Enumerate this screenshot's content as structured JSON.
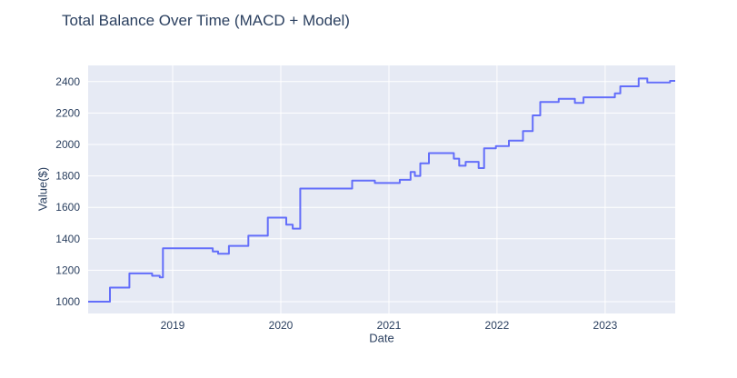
{
  "chart_data": {
    "type": "line",
    "title": "Total Balance Over Time (MACD + Model)",
    "xlabel": "Date",
    "ylabel": "Value($)",
    "line_shape": "step-after",
    "legend": "none",
    "grid": true,
    "x_range": [
      2018.218,
      2023.648
    ],
    "y_range": [
      925,
      2503
    ],
    "x_ticks": [
      {
        "value": 2019,
        "label": "2019"
      },
      {
        "value": 2020,
        "label": "2020"
      },
      {
        "value": 2021,
        "label": "2021"
      },
      {
        "value": 2022,
        "label": "2022"
      },
      {
        "value": 2023,
        "label": "2023"
      }
    ],
    "y_ticks": [
      {
        "value": 1000,
        "label": "1000"
      },
      {
        "value": 1200,
        "label": "1200"
      },
      {
        "value": 1400,
        "label": "1400"
      },
      {
        "value": 1600,
        "label": "1600"
      },
      {
        "value": 1800,
        "label": "1800"
      },
      {
        "value": 2000,
        "label": "2000"
      },
      {
        "value": 2200,
        "label": "2200"
      },
      {
        "value": 2400,
        "label": "2400"
      }
    ],
    "colors": {
      "line": "#636efa",
      "plot_bg": "#e6eaf4",
      "grid": "#ffffff",
      "text": "#2a3f5f",
      "paper_bg": "#ffffff"
    },
    "series": [
      {
        "name": "Total Balance",
        "points": [
          [
            2018.218,
            1000
          ],
          [
            2018.42,
            1090
          ],
          [
            2018.6,
            1180
          ],
          [
            2018.81,
            1165
          ],
          [
            2018.88,
            1155
          ],
          [
            2018.91,
            1340
          ],
          [
            2019.37,
            1320
          ],
          [
            2019.42,
            1305
          ],
          [
            2019.52,
            1355
          ],
          [
            2019.7,
            1420
          ],
          [
            2019.88,
            1535
          ],
          [
            2020.05,
            1490
          ],
          [
            2020.11,
            1465
          ],
          [
            2020.18,
            1720
          ],
          [
            2020.66,
            1770
          ],
          [
            2020.87,
            1755
          ],
          [
            2021.1,
            1775
          ],
          [
            2021.2,
            1825
          ],
          [
            2021.24,
            1800
          ],
          [
            2021.29,
            1880
          ],
          [
            2021.37,
            1945
          ],
          [
            2021.6,
            1910
          ],
          [
            2021.65,
            1865
          ],
          [
            2021.71,
            1890
          ],
          [
            2021.83,
            1850
          ],
          [
            2021.88,
            1975
          ],
          [
            2021.99,
            1990
          ],
          [
            2022.11,
            2025
          ],
          [
            2022.24,
            2085
          ],
          [
            2022.33,
            2185
          ],
          [
            2022.4,
            2270
          ],
          [
            2022.57,
            2290
          ],
          [
            2022.72,
            2265
          ],
          [
            2022.8,
            2300
          ],
          [
            2023.09,
            2325
          ],
          [
            2023.14,
            2370
          ],
          [
            2023.31,
            2420
          ],
          [
            2023.39,
            2395
          ],
          [
            2023.6,
            2405
          ]
        ],
        "end_x": 2023.648
      }
    ]
  }
}
